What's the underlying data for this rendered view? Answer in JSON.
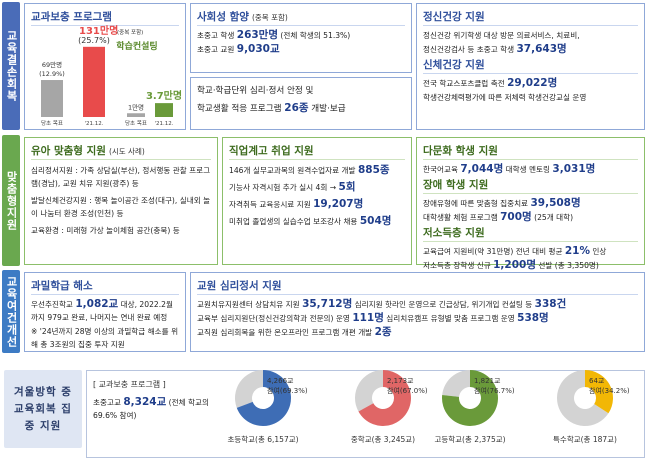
{
  "sections": [
    "교육결손회복",
    "맞춤형지원",
    "교육여건개선",
    "겨울방학 중 교육회복 집중 지원"
  ],
  "panels": [
    {
      "groups": [
        {
          "title": "교과보충 프로그램",
          "chart": {
            "type": "bar",
            "categories": [
              "당초 목표",
              "'21.12."
            ],
            "values": [
              69,
              131
            ],
            "value_labels": [
              "69만명",
              "131만명"
            ],
            "notes": [
              "(12.9%)",
              "(25.7%)"
            ],
            "extra": "(중복 포함)",
            "colors": [
              "#a6a6a6",
              "#e84b4b"
            ],
            "ylim": [
              0,
              140
            ]
          }
        },
        {
          "title": "학습컨설팅",
          "chart": {
            "type": "bar",
            "categories": [
              "당초 목표",
              "'21.12."
            ],
            "values": [
              1,
              3.7
            ],
            "value_labels": [
              "1만명",
              "3.7만명"
            ],
            "colors": [
              "#a6a6a6",
              "#6a9a3a"
            ],
            "ylim": [
              0,
              20
            ]
          }
        }
      ]
    },
    {
      "groups": [
        {
          "title": "사회성 함양",
          "title_note": "(중복 포함)",
          "lines": [
            [
              "초중고 학생 ",
              "263만명",
              " (전체 학생의 51.3%)"
            ],
            [
              "초중고 교원 ",
              "9,030교"
            ]
          ]
        }
      ]
    },
    {
      "groups": [
        {
          "lines": [
            [
              "학교·학급단위 심리·정서 안정 및"
            ],
            [
              "학교생활 적응 프로그램 ",
              "26종",
              " 개발·보급"
            ]
          ]
        }
      ]
    },
    {
      "groups": [
        {
          "title": "정신건강 지원",
          "lines": [
            [
              "정신건강 위기학생 대상 방문 의료서비스, 치료비,"
            ],
            [
              "정신건강검사 등 초중고 학생 ",
              "37,643명"
            ]
          ]
        },
        {
          "title": "신체건강 지원",
          "lines": [
            [
              "전국 학교스포츠클럽 축전 ",
              "29,022명"
            ],
            [
              "학생건강체력평가에 따른 저체력 학생건강교실 운영"
            ]
          ]
        }
      ]
    },
    {
      "groups": [
        {
          "title": "유아 맞춤형 지원",
          "title_note": "(시도 사례)",
          "lines": [
            [
              "심리정서지원 : 가족 상담실(부산), 정서행동 관찰 프로그램(경남), 교원 치유 지원(광주) 등"
            ],
            [
              "발달신체건강지원 : 행복 놀이공간 조성(대구), 실내외 놀이 나눔터 환경 조성(인천) 등"
            ],
            [
              "교육환경 : 미래형 가상 놀이체험 공간(충북) 등"
            ]
          ]
        }
      ]
    },
    {
      "groups": [
        {
          "title": "직업계고 취업 지원",
          "lines": [
            [
              "146개 실무교과목의 원격수업자료 개발 ",
              "885종"
            ],
            [
              "기능사 자격시험 추가 실시 4회 → ",
              "5회"
            ],
            [
              "자격취득 교육응시료 지원 ",
              "19,207명"
            ],
            [
              "미취업 졸업생의 실습수업 보조강사 채용 ",
              "504명"
            ]
          ]
        }
      ]
    },
    {
      "groups": [
        {
          "title": "다문화 학생 지원",
          "lines": [
            [
              "한국어교육 ",
              "7,044명",
              " 대학생 멘토링 ",
              "3,031명"
            ]
          ]
        },
        {
          "title": "장애 학생 지원",
          "lines": [
            [
              "장애유형에 따른 맞춤형 집중치료 ",
              "39,508명"
            ],
            [
              "대학생활 체험 프로그램 ",
              "700명",
              " (25개 대학)"
            ]
          ]
        },
        {
          "title": "저소득층 지원",
          "lines": [
            [
              "교육급여 지원비(약 31만명) 전년 대비 평균 ",
              "21%",
              " 인상"
            ],
            [
              "저소득층 장학생 신규 ",
              "1,200명",
              " 선발 (총 3,350명)"
            ]
          ]
        }
      ]
    },
    {
      "groups": [
        {
          "title": "과밀학급 해소",
          "lines": [
            [
              "우선추진학교 ",
              "1,082교",
              " 대상, 2022.2월까지 979교 완료, 나머지는 연내 완료 예정"
            ],
            [
              "※ '24년까지 28명 이상의 과밀학급 해소를 위해 총 3조원의 집중 투자 지원"
            ]
          ]
        }
      ]
    },
    {
      "groups": [
        {
          "title": "교원 심리정서 지원",
          "lines": [
            [
              "교원치유지원센터 상담치유 지원 ",
              "35,712명",
              " 심리지원 핫라인 운영으로 긴급상담, 위기개입 컨설팅 등 ",
              "338건"
            ],
            [
              "교육부 심리지원단(정신건강의학과 전문의) 운영 ",
              "111명",
              " 심리치유캠프 유형별 맞춤 프로그램 운영 ",
              "538명"
            ],
            [
              "교직원 심리회복을 위한 온오프라인 프로그램 개편 개발 ",
              "2종"
            ]
          ]
        }
      ]
    }
  ],
  "winter": {
    "title": "[ 교과보충 프로그램 ]",
    "summary": [
      "초중고교 ",
      "8,324교",
      " (전체 학교의 69.6% 참여)"
    ],
    "pies": {
      "type": "pie",
      "categories": [
        "초등학교(총 6,157교)",
        "중학교(총 3,245교)",
        "고등학교(총 2,375교)",
        "특수학교(총 187교)"
      ],
      "counts": [
        "4,266교",
        "2,173교",
        "1,821교",
        "64교"
      ],
      "values": [
        69.3,
        67.0,
        76.7,
        34.2
      ],
      "value_labels": [
        "참여(69.3%)",
        "참여(67.0%)",
        "참여(76.7%)",
        "참여(34.2%)"
      ],
      "colors": [
        "#3e6db5",
        "#e06666",
        "#6a9a3a",
        "#f2b705"
      ],
      "rest_color": "#d3d3d3"
    }
  }
}
